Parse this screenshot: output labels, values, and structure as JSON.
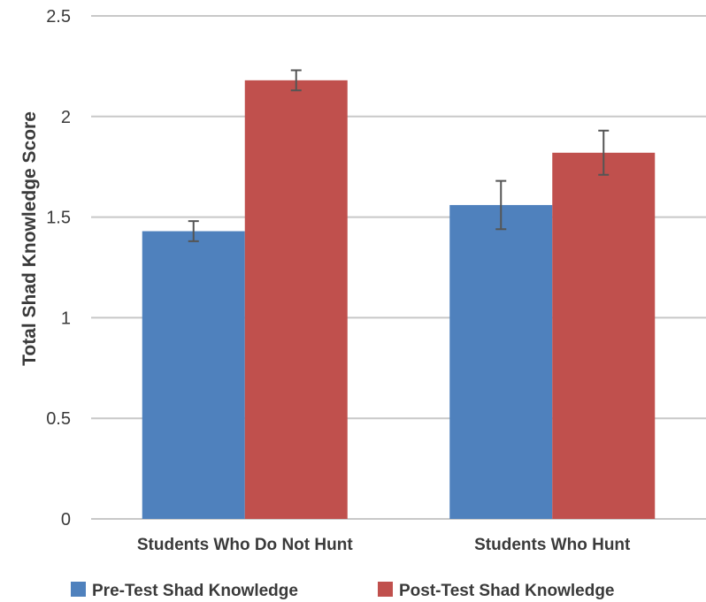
{
  "chart_data": {
    "type": "bar",
    "title": "",
    "xlabel": "",
    "ylabel": "Total Shad Knowledge Score",
    "ylim": [
      0,
      2.5
    ],
    "yticks": [
      "0",
      "0.5",
      "1",
      "1.5",
      "2",
      "2.5"
    ],
    "grid": true,
    "legend_position": "bottom",
    "categories": [
      "Students Who Do Not Hunt",
      "Students Who Hunt"
    ],
    "series": [
      {
        "name": "Pre-Test Shad Knowledge",
        "color": "#4f81bd",
        "values": [
          1.43,
          1.56
        ],
        "error": [
          0.05,
          0.12
        ]
      },
      {
        "name": "Post-Test Shad Knowledge",
        "color": "#c0504d",
        "values": [
          2.18,
          1.82
        ],
        "error": [
          0.05,
          0.11
        ]
      }
    ]
  }
}
